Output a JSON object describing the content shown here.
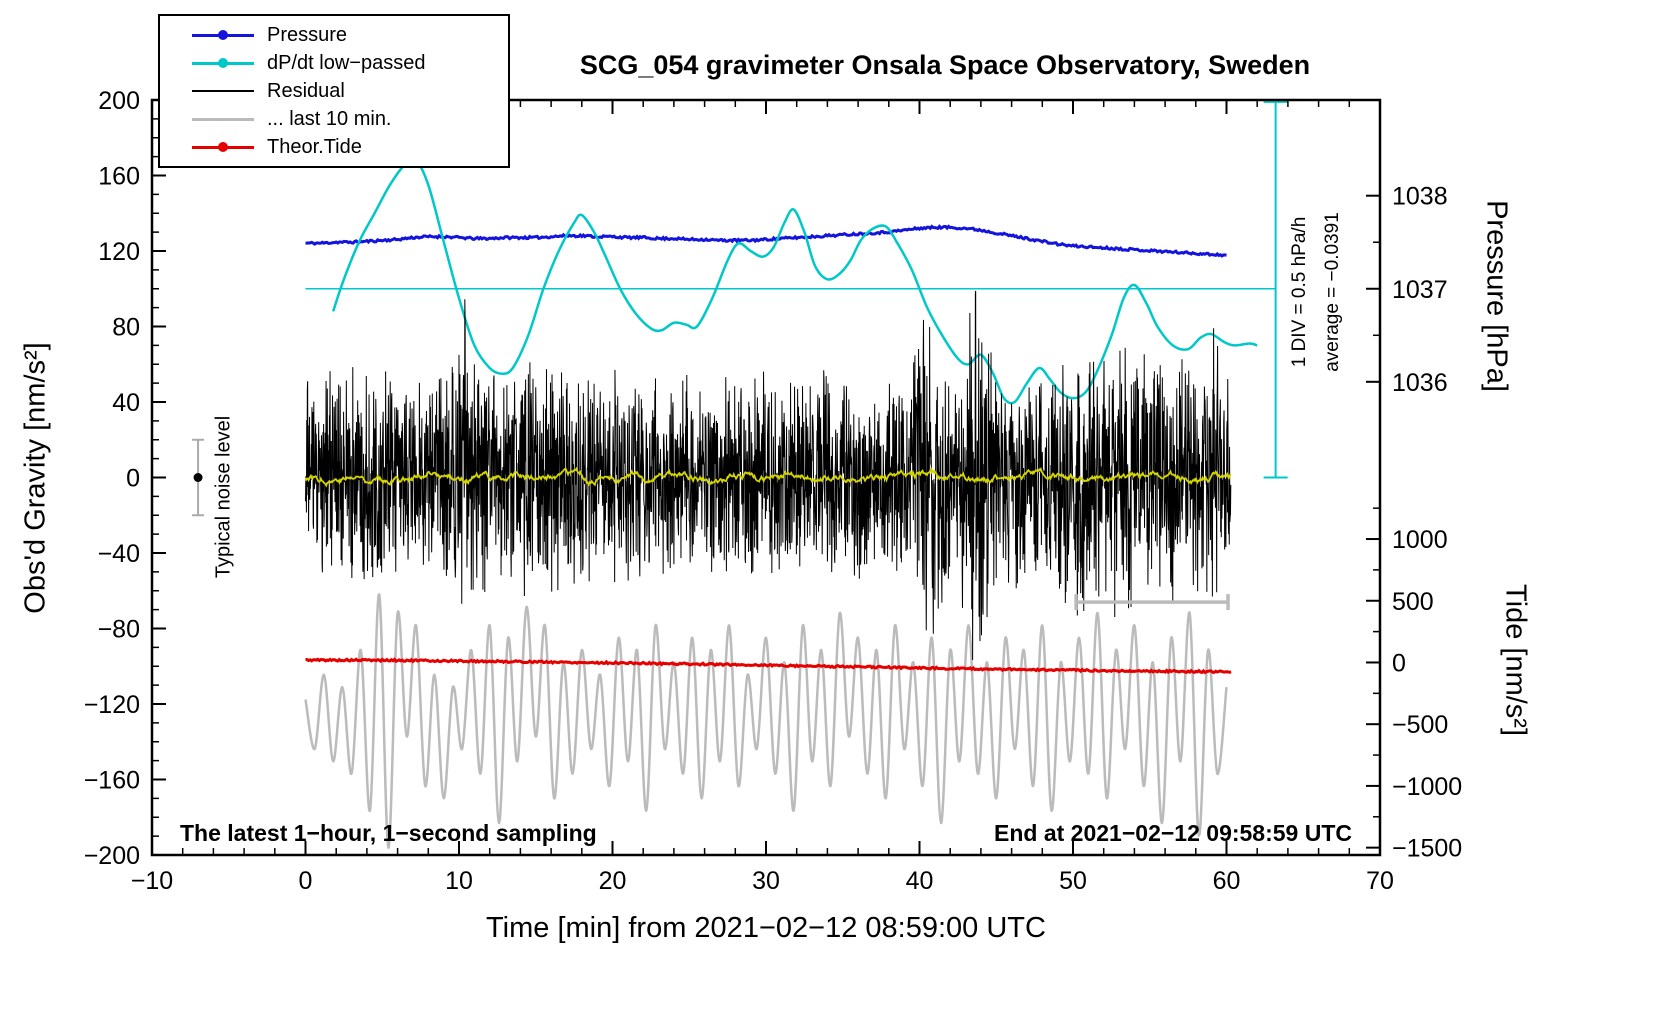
{
  "texts": {
    "sampling_note": "The latest 1−hour, 1−second sampling",
    "end_note": "End at 2021−02−12 09:58:59 UTC",
    "noise_label": "Typical noise level",
    "div_label": "1 DIV = 0.5 hPa/h",
    "avg_label": "average = −0.0391"
  },
  "legend": {
    "items": [
      {
        "label": "Pressure",
        "color": "#1414dc",
        "dot": true
      },
      {
        "label": "dP/dt low−passed",
        "color": "#00c8c8",
        "dot": true
      },
      {
        "label": "Residual",
        "color": "#000000",
        "dot": false
      },
      {
        "label": "... last 10 min.",
        "color": "#bbbbbb",
        "dot": false
      },
      {
        "label": "Theor.Tide",
        "color": "#e60000",
        "dot": true
      }
    ]
  },
  "chart_data": {
    "type": "line",
    "title": "SCG_054 gravimeter Onsala Space Observatory, Sweden",
    "x_axis": {
      "label": "Time [min] from 2021−02−12 08:59:00 UTC",
      "min": -10,
      "max": 70,
      "minor_step": 2,
      "major_ticks": [
        -10,
        0,
        10,
        20,
        30,
        40,
        50,
        60,
        70
      ],
      "tick_labels": [
        "−10",
        "0",
        "10",
        "20",
        "30",
        "40",
        "50",
        "60",
        "70"
      ]
    },
    "left_axis": {
      "label": "Obs'd Gravity [nm/s²]",
      "min": -200,
      "max": 200,
      "minor_step": 10,
      "major_ticks": [
        200,
        160,
        120,
        80,
        40,
        0,
        -40,
        -80,
        -120,
        -160,
        -200
      ],
      "tick_labels": [
        "200",
        "160",
        "120",
        "80",
        "40",
        "0",
        "−40",
        "−80",
        "−120",
        "−160",
        "−200"
      ]
    },
    "right_pressure_axis": {
      "label": "Pressure [hPa]",
      "major_ticks": [
        1038,
        1037,
        1036
      ],
      "tick_labels": [
        "1038",
        "1037",
        "1036"
      ],
      "minor_ticks": [
        1037.5,
        1036.5
      ],
      "gravity_at_1037": 100,
      "gravity_per_hpa": 49.3
    },
    "right_tide_axis": {
      "label": "Tide [nm/s²]",
      "major_ticks": [
        1000,
        500,
        0,
        -500,
        -1000,
        -1500
      ],
      "tick_labels": [
        "1000",
        "500",
        "0",
        "−500",
        "−1000",
        "−1500"
      ],
      "minor_ticks": [
        1250,
        750,
        250,
        -250,
        -750,
        -1250
      ],
      "gravity_at_zero": -98,
      "gravity_per_unit": 0.0654
    },
    "annotations": {
      "average_line": {
        "gravity": 100,
        "x_from": 0,
        "x_to": 63.2,
        "color": "#00c8c8"
      },
      "div_scale_bar": {
        "x": 63.2,
        "g_top": 199,
        "g_bottom": 0,
        "cap_width": 24,
        "color": "#00c8c8"
      },
      "last10_bracket": {
        "gravity": -66,
        "x_from": 50.2,
        "x_to": 60.1,
        "cap_half": 8,
        "color": "#bbbbbb"
      },
      "noise_marker": {
        "x": -7,
        "gravity": 0,
        "error": 20,
        "bar_color": "#aaaaaa",
        "dot_color": "#000000"
      }
    },
    "series": [
      {
        "name": "Pressure",
        "axis": "pressure",
        "color": "#1414dc",
        "style": "line",
        "width": 3,
        "jitter": 0.6,
        "seed": 11,
        "x_start": 0,
        "dx": 1,
        "values": [
          1037.49,
          1037.49,
          1037.5,
          1037.5,
          1037.51,
          1037.52,
          1037.53,
          1037.55,
          1037.56,
          1037.56,
          1037.55,
          1037.54,
          1037.54,
          1037.55,
          1037.55,
          1037.55,
          1037.56,
          1037.57,
          1037.57,
          1037.56,
          1037.56,
          1037.55,
          1037.55,
          1037.54,
          1037.54,
          1037.53,
          1037.53,
          1037.52,
          1037.52,
          1037.52,
          1037.53,
          1037.54,
          1037.55,
          1037.56,
          1037.57,
          1037.58,
          1037.59,
          1037.6,
          1037.61,
          1037.63,
          1037.65,
          1037.66,
          1037.66,
          1037.65,
          1037.63,
          1037.6,
          1037.57,
          1037.54,
          1037.51,
          1037.48,
          1037.46,
          1037.45,
          1037.44,
          1037.43,
          1037.42,
          1037.41,
          1037.4,
          1037.39,
          1037.38,
          1037.37,
          1037.36
        ]
      },
      {
        "name": "dP/dt low−passed",
        "axis": "gravity",
        "color": "#00c8c8",
        "style": "smooth",
        "width": 2.5,
        "points": [
          [
            1.8,
            88
          ],
          [
            2.5,
            105
          ],
          [
            3.5,
            125
          ],
          [
            4.5,
            140
          ],
          [
            5.5,
            155
          ],
          [
            6.5,
            166
          ],
          [
            7.2,
            168
          ],
          [
            8,
            155
          ],
          [
            9,
            125
          ],
          [
            10,
            95
          ],
          [
            11,
            70
          ],
          [
            12,
            58
          ],
          [
            12.8,
            55
          ],
          [
            13.5,
            58
          ],
          [
            14.5,
            75
          ],
          [
            15.5,
            100
          ],
          [
            16.5,
            120
          ],
          [
            17.5,
            135
          ],
          [
            18,
            139
          ],
          [
            18.8,
            130
          ],
          [
            19.5,
            118
          ],
          [
            20.5,
            100
          ],
          [
            21.5,
            87
          ],
          [
            22.5,
            79
          ],
          [
            23.2,
            78
          ],
          [
            24,
            82
          ],
          [
            24.8,
            81
          ],
          [
            25.5,
            80
          ],
          [
            26.5,
            95
          ],
          [
            27.5,
            115
          ],
          [
            28.2,
            124
          ],
          [
            29,
            120
          ],
          [
            29.8,
            117
          ],
          [
            30.5,
            122
          ],
          [
            31.2,
            135
          ],
          [
            31.8,
            142
          ],
          [
            32.5,
            130
          ],
          [
            33.2,
            112
          ],
          [
            34,
            105
          ],
          [
            34.8,
            108
          ],
          [
            35.5,
            115
          ],
          [
            36.2,
            126
          ],
          [
            37,
            132
          ],
          [
            37.8,
            133
          ],
          [
            38.5,
            125
          ],
          [
            39.5,
            110
          ],
          [
            40.5,
            90
          ],
          [
            41.5,
            75
          ],
          [
            42.5,
            63
          ],
          [
            43.2,
            60
          ],
          [
            44,
            65
          ],
          [
            44.8,
            55
          ],
          [
            45.5,
            42
          ],
          [
            46.2,
            40
          ],
          [
            47,
            50
          ],
          [
            47.8,
            58
          ],
          [
            48.5,
            52
          ],
          [
            49.2,
            45
          ],
          [
            50,
            42
          ],
          [
            50.8,
            45
          ],
          [
            51.5,
            55
          ],
          [
            52.5,
            75
          ],
          [
            53.3,
            95
          ],
          [
            54,
            102
          ],
          [
            54.8,
            92
          ],
          [
            55.5,
            80
          ],
          [
            56.5,
            70
          ],
          [
            57.5,
            68
          ],
          [
            58.3,
            74
          ],
          [
            59,
            76
          ],
          [
            59.8,
            72
          ],
          [
            60.5,
            70
          ],
          [
            61.5,
            71
          ],
          [
            62,
            70
          ]
        ]
      },
      {
        "name": "... last 10 min.",
        "axis": "tide",
        "color": "#bbbbbb",
        "style": "smooth",
        "width": 2.5,
        "x_start": 0,
        "dx": 0.6,
        "values": [
          -300,
          -700,
          -100,
          -800,
          -200,
          -900,
          100,
          -1200,
          550,
          -1500,
          400,
          -600,
          300,
          -1000,
          -100,
          -1100,
          -200,
          -700,
          100,
          -900,
          300,
          -1300,
          200,
          -800,
          450,
          -600,
          300,
          -1100,
          0,
          -900,
          100,
          -700,
          -100,
          -1000,
          200,
          -800,
          100,
          -1200,
          300,
          -700,
          0,
          -900,
          200,
          -1100,
          100,
          -800,
          300,
          -1000,
          -100,
          -700,
          200,
          -900,
          0,
          -1200,
          300,
          -800,
          100,
          -1000,
          400,
          -600,
          200,
          -900,
          100,
          -1100,
          300,
          -700,
          0,
          -1000,
          200,
          -1300,
          100,
          -800,
          300,
          -900,
          0,
          -1100,
          200,
          -700,
          100,
          -1000,
          300,
          -1200,
          0,
          -800,
          200,
          -900,
          400,
          -1100,
          100,
          -700,
          300,
          -1000,
          0,
          -1300,
          200,
          -800,
          400,
          -1400,
          100,
          -900,
          -200
        ]
      },
      {
        "name": "Residual",
        "axis": "gravity",
        "color": "#000000",
        "style": "noise",
        "width": 1,
        "dt": 0.02,
        "seed": 1234,
        "x_from": 0,
        "x_to": 60.3,
        "envelope": [
          [
            0,
            45
          ],
          [
            2,
            50
          ],
          [
            4,
            55
          ],
          [
            6,
            45
          ],
          [
            8,
            45
          ],
          [
            9.5,
            55
          ],
          [
            10.3,
            85
          ],
          [
            11,
            60
          ],
          [
            12,
            50
          ],
          [
            13,
            60
          ],
          [
            14,
            65
          ],
          [
            15,
            55
          ],
          [
            16,
            60
          ],
          [
            17,
            50
          ],
          [
            18,
            55
          ],
          [
            20,
            50
          ],
          [
            22,
            45
          ],
          [
            24,
            50
          ],
          [
            26,
            45
          ],
          [
            28,
            50
          ],
          [
            30,
            50
          ],
          [
            32,
            45
          ],
          [
            34,
            50
          ],
          [
            36,
            50
          ],
          [
            38,
            45
          ],
          [
            39.5,
            55
          ],
          [
            40.5,
            80
          ],
          [
            41.5,
            60
          ],
          [
            42.5,
            60
          ],
          [
            43.5,
            90
          ],
          [
            44.5,
            65
          ],
          [
            45.5,
            55
          ],
          [
            46.5,
            50
          ],
          [
            48,
            45
          ],
          [
            50,
            65
          ],
          [
            51,
            60
          ],
          [
            52,
            55
          ],
          [
            53,
            70
          ],
          [
            54,
            60
          ],
          [
            55,
            55
          ],
          [
            56,
            60
          ],
          [
            57,
            55
          ],
          [
            58,
            50
          ],
          [
            59,
            70
          ],
          [
            60.3,
            60
          ]
        ]
      },
      {
        "name": "Residual low-passed",
        "axis": "gravity",
        "color": "#d4d400",
        "style": "walk",
        "width": 1.8,
        "amp": 4,
        "dt": 0.05,
        "seed": 77,
        "x_from": 0,
        "x_to": 60.3
      },
      {
        "name": "Theor.Tide",
        "axis": "tide",
        "color": "#e60000",
        "style": "line",
        "width": 3,
        "jitter": 0.5,
        "seed": 5,
        "points": [
          [
            0,
            20
          ],
          [
            5,
            18
          ],
          [
            10,
            12
          ],
          [
            15,
            5
          ],
          [
            20,
            -3
          ],
          [
            25,
            -12
          ],
          [
            30,
            -22
          ],
          [
            35,
            -33
          ],
          [
            40,
            -44
          ],
          [
            45,
            -55
          ],
          [
            50,
            -63
          ],
          [
            55,
            -70
          ],
          [
            60.3,
            -76
          ]
        ]
      }
    ]
  }
}
